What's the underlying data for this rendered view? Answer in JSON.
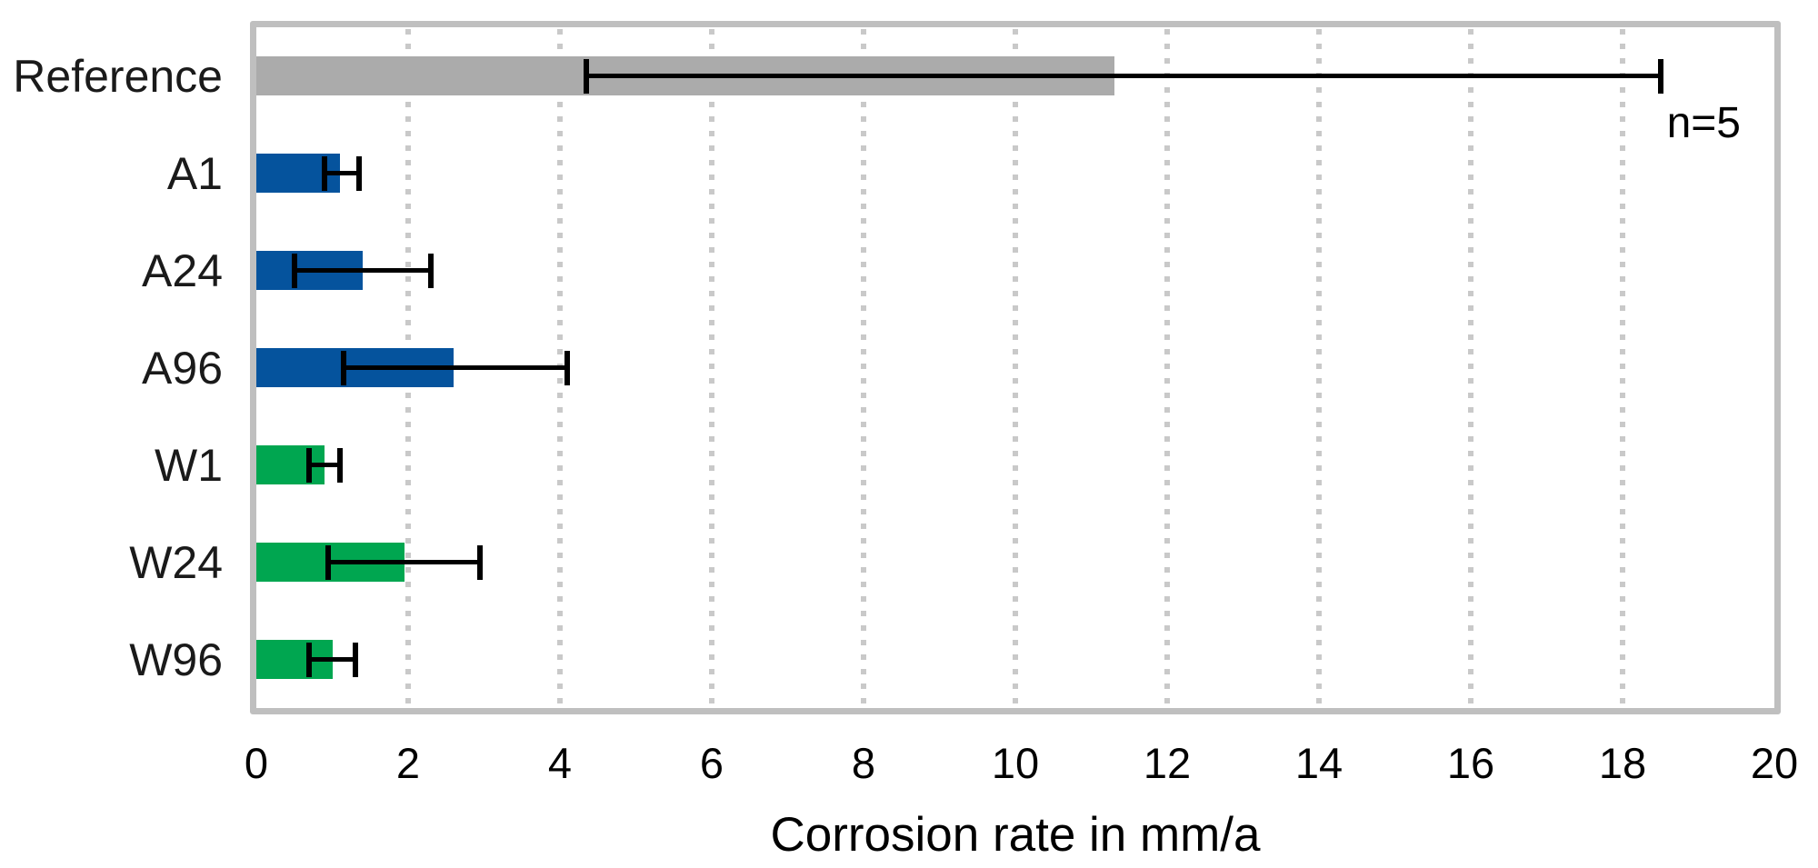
{
  "figure": {
    "background": "#ffffff",
    "frame_color": "#bfbfbf",
    "gridline_color": "#c9c9c9",
    "error_bar_color": "#000000"
  },
  "annotation": "n=5",
  "chart_data": {
    "type": "bar",
    "orientation": "horizontal",
    "title": "",
    "xlabel": "Corrosion rate in mm/a",
    "ylabel": "",
    "xlim": [
      0,
      20
    ],
    "xticks": [
      0,
      2,
      4,
      6,
      8,
      10,
      12,
      14,
      16,
      18,
      20
    ],
    "grid": "vertical dotted gridlines at ticks 2 through 18",
    "legend": "none",
    "annotation": "n=5",
    "categories": [
      "Reference",
      "A1",
      "A24",
      "A96",
      "W1",
      "W24",
      "W96"
    ],
    "values": [
      11.3,
      1.1,
      1.4,
      2.6,
      0.9,
      1.95,
      1.0
    ],
    "error_low": [
      4.35,
      0.9,
      0.5,
      1.15,
      0.7,
      0.95,
      0.7
    ],
    "error_high": [
      18.5,
      1.35,
      2.3,
      4.1,
      1.1,
      2.95,
      1.3
    ],
    "bar_colors": [
      "#ababab",
      "#05539d",
      "#05539d",
      "#05539d",
      "#00a650",
      "#00a650",
      "#00a650"
    ],
    "series_note": "Reference = gray, A-series = blue, W-series = green"
  }
}
